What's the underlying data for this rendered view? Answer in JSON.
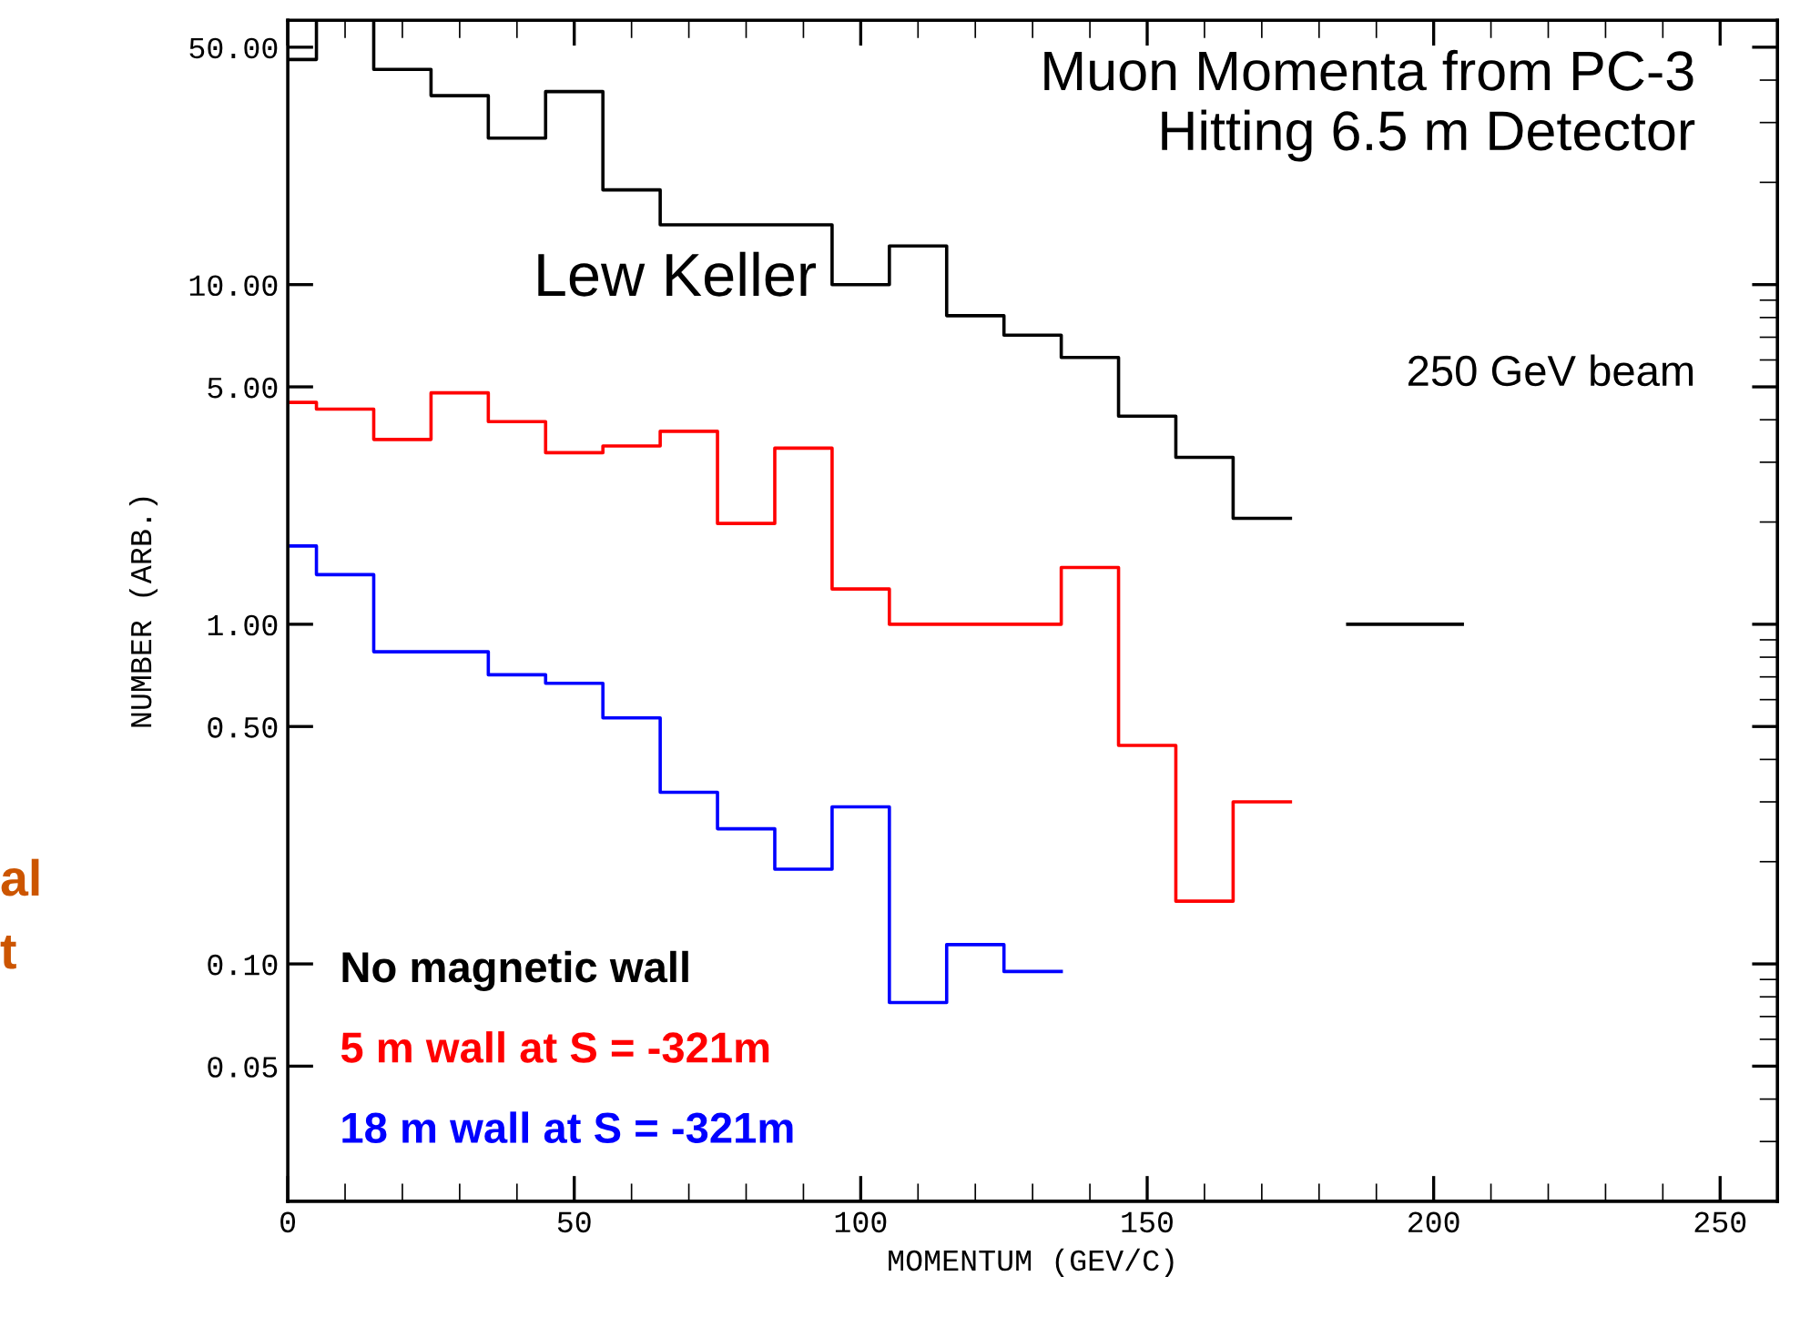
{
  "chart_data": {
    "type": "step",
    "title": "Muon Momenta from PC-3\nHitting 6.5 m Detector",
    "xlabel": "MOMENTUM (GEV/C)",
    "ylabel": "NUMBER (ARB.)",
    "annotations": [
      "Lew Keller",
      "250 GeV beam",
      "al",
      "t"
    ],
    "series": [
      {
        "name": "No magnetic wall",
        "color": "#000000",
        "x": [
          0,
          5,
          15,
          25,
          35,
          45,
          55,
          65,
          75,
          85,
          95,
          105,
          115,
          125,
          135,
          145,
          155,
          165,
          175,
          185,
          205
        ],
        "values": [
          46,
          60,
          43,
          36,
          27,
          37,
          19,
          15,
          15,
          15,
          10,
          13,
          8.1,
          7.1,
          6.1,
          4.1,
          3.1,
          2.05,
          null,
          1.0,
          1.0
        ]
      },
      {
        "name": "5 m wall at S = -321m",
        "color": "#ff0000",
        "x": [
          0,
          5,
          15,
          25,
          35,
          45,
          55,
          65,
          75,
          85,
          95,
          105,
          115,
          125,
          135,
          145,
          155,
          165,
          175
        ],
        "values": [
          4.5,
          4.3,
          3.5,
          4.8,
          3.95,
          3.2,
          3.35,
          3.7,
          1.98,
          3.3,
          1.27,
          1.0,
          1.0,
          1.0,
          1.47,
          0.44,
          0.153,
          0.3,
          0.3
        ]
      },
      {
        "name": "18 m wall at S = -321m",
        "color": "#0000ff",
        "x": [
          0,
          5,
          15,
          25,
          35,
          45,
          55,
          65,
          75,
          85,
          95,
          105,
          115,
          125,
          135
        ],
        "values": [
          1.7,
          1.4,
          0.83,
          0.83,
          0.71,
          0.67,
          0.53,
          0.32,
          0.25,
          0.19,
          0.29,
          0.077,
          0.114,
          0.095,
          0.095
        ]
      }
    ],
    "xlim": [
      0,
      260
    ],
    "xticks": [
      0,
      50,
      100,
      150,
      200,
      250
    ],
    "ylim": [
      0.02,
      60
    ],
    "log": true,
    "yticks": [
      {
        "value": 0.05,
        "label": "0.05"
      },
      {
        "value": 0.1,
        "label": "0.10"
      },
      {
        "value": 0.5,
        "label": "0.50"
      },
      {
        "value": 1,
        "label": "1.00"
      },
      {
        "value": 5,
        "label": "5.00"
      },
      {
        "value": 10,
        "label": "10.00"
      },
      {
        "value": 50,
        "label": "50.00"
      }
    ],
    "grid": false,
    "legend": "bottom left"
  }
}
